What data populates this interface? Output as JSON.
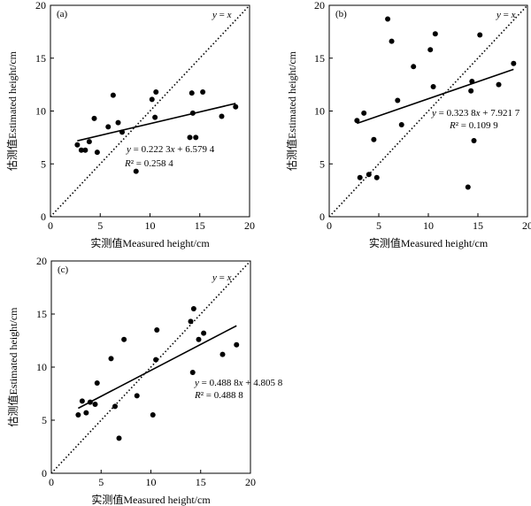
{
  "chart_data": [
    {
      "type": "scatter",
      "panel_label": "(a)",
      "xlabel": "实测值Measured height/cm",
      "ylabel": "估测值Estimated height/cm",
      "xlim": [
        0,
        20
      ],
      "ylim": [
        0,
        20
      ],
      "xticks": [
        "0",
        "5",
        "10",
        "15",
        "20"
      ],
      "yticks": [
        "0",
        "5",
        "10",
        "15",
        "20"
      ],
      "identity_label": "y = x",
      "equation": "y = 0.222 3x + 6.579 4",
      "r2": "R² = 0.258 4",
      "fit": {
        "slope": 0.2223,
        "intercept": 6.5794,
        "x_range": [
          2.7,
          18.6
        ]
      },
      "points": [
        [
          2.7,
          6.8
        ],
        [
          3.1,
          6.3
        ],
        [
          3.5,
          6.3
        ],
        [
          3.9,
          7.1
        ],
        [
          4.4,
          9.3
        ],
        [
          4.7,
          6.1
        ],
        [
          5.8,
          8.5
        ],
        [
          6.3,
          11.5
        ],
        [
          6.8,
          8.9
        ],
        [
          7.2,
          8.0
        ],
        [
          8.6,
          4.3
        ],
        [
          10.2,
          11.1
        ],
        [
          10.5,
          9.4
        ],
        [
          10.6,
          11.8
        ],
        [
          14.0,
          7.5
        ],
        [
          14.2,
          11.7
        ],
        [
          14.3,
          9.8
        ],
        [
          14.6,
          7.5
        ],
        [
          15.3,
          11.8
        ],
        [
          17.2,
          9.5
        ],
        [
          18.6,
          10.4
        ]
      ]
    },
    {
      "type": "scatter",
      "panel_label": "(b)",
      "xlabel": "实测值Measured height/cm",
      "ylabel": "估测值Estimated height/cm",
      "xlim": [
        0,
        20
      ],
      "ylim": [
        0,
        20
      ],
      "xticks": [
        "0",
        "5",
        "10",
        "15",
        "20"
      ],
      "yticks": [
        "0",
        "5",
        "10",
        "15",
        "20"
      ],
      "identity_label": "y = x",
      "equation": "y = 0.323 8x + 7.921 7",
      "r2": "R² = 0.109 9",
      "fit": {
        "slope": 0.3238,
        "intercept": 7.9217,
        "x_range": [
          2.8,
          18.6
        ]
      },
      "points": [
        [
          2.8,
          9.1
        ],
        [
          3.1,
          3.7
        ],
        [
          3.5,
          9.8
        ],
        [
          4.0,
          4.0
        ],
        [
          4.5,
          7.3
        ],
        [
          4.8,
          3.7
        ],
        [
          5.9,
          18.7
        ],
        [
          6.3,
          16.6
        ],
        [
          6.9,
          11.0
        ],
        [
          7.3,
          8.7
        ],
        [
          8.5,
          14.2
        ],
        [
          10.2,
          15.8
        ],
        [
          10.5,
          12.3
        ],
        [
          10.7,
          17.3
        ],
        [
          14.0,
          2.8
        ],
        [
          14.3,
          11.9
        ],
        [
          14.4,
          12.8
        ],
        [
          14.6,
          7.2
        ],
        [
          15.2,
          17.2
        ],
        [
          17.1,
          12.5
        ],
        [
          18.6,
          14.5
        ]
      ]
    },
    {
      "type": "scatter",
      "panel_label": "(c)",
      "xlabel": "实测值Measured height/cm",
      "ylabel": "估测值Estimated height/cm",
      "xlim": [
        0,
        20
      ],
      "ylim": [
        0,
        20
      ],
      "xticks": [
        "0",
        "5",
        "10",
        "15",
        "20"
      ],
      "yticks": [
        "0",
        "5",
        "10",
        "15",
        "20"
      ],
      "identity_label": "y = x",
      "equation": "y = 0.488 8x + 4.805 8",
      "r2": "R² = 0.488 8",
      "fit": {
        "slope": 0.4888,
        "intercept": 4.8058,
        "x_range": [
          2.7,
          18.6
        ]
      },
      "points": [
        [
          2.7,
          5.5
        ],
        [
          3.1,
          6.8
        ],
        [
          3.5,
          5.7
        ],
        [
          3.9,
          6.7
        ],
        [
          4.4,
          6.5
        ],
        [
          4.6,
          8.5
        ],
        [
          6.0,
          10.8
        ],
        [
          6.4,
          6.3
        ],
        [
          6.8,
          3.3
        ],
        [
          7.3,
          12.6
        ],
        [
          8.6,
          7.3
        ],
        [
          10.2,
          5.5
        ],
        [
          10.5,
          10.7
        ],
        [
          10.6,
          13.5
        ],
        [
          14.0,
          14.3
        ],
        [
          14.2,
          9.5
        ],
        [
          14.3,
          15.5
        ],
        [
          14.8,
          12.6
        ],
        [
          15.3,
          13.2
        ],
        [
          17.2,
          11.2
        ],
        [
          18.6,
          12.1
        ]
      ]
    }
  ]
}
